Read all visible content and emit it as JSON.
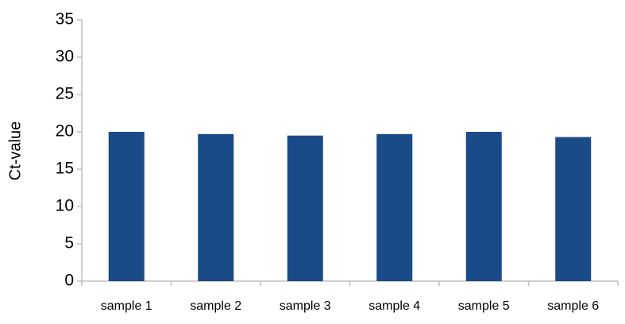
{
  "chart_data": {
    "type": "bar",
    "y_label": "Ct-value",
    "categories": [
      "sample 1",
      "sample 2",
      "sample 3",
      "sample 4",
      "sample 5",
      "sample 6"
    ],
    "values": [
      20.0,
      19.7,
      19.5,
      19.7,
      20.0,
      19.3
    ],
    "color": "#1a4a88",
    "ylim": [
      0,
      35
    ],
    "yticks": [
      0,
      5,
      10,
      15,
      20,
      25,
      30,
      35
    ],
    "grid": false
  }
}
